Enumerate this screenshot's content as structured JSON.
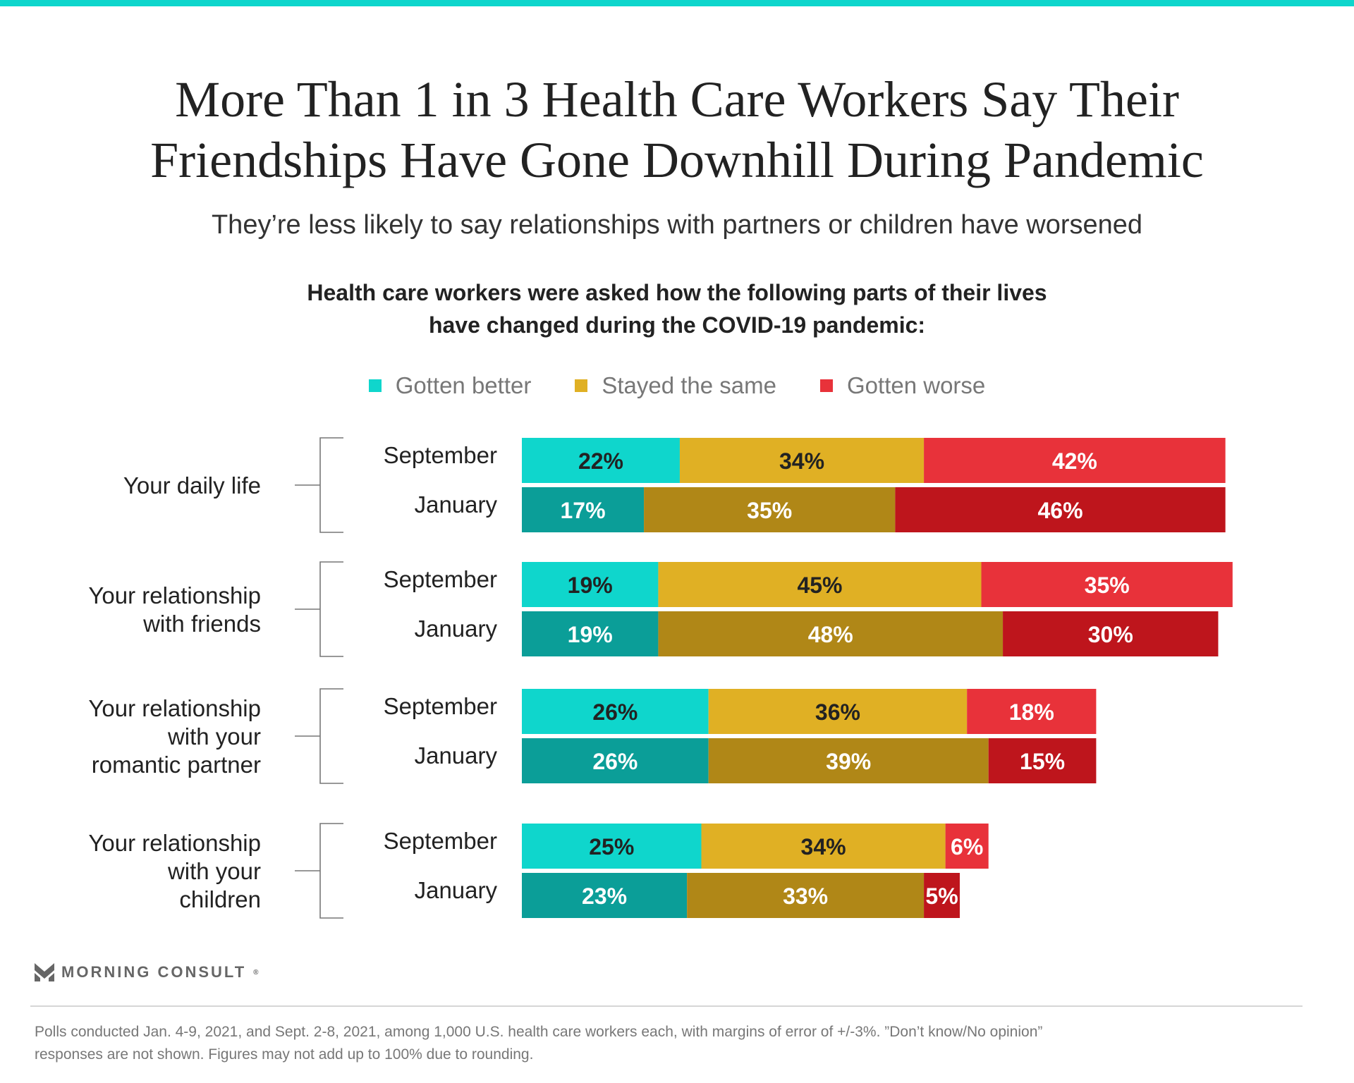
{
  "header": {
    "title_line1": "More Than 1 in 3 Health Care Workers Say Their",
    "title_line2": "Friendships Have Gone Downhill During Pandemic",
    "subtitle": "They’re less likely to say relationships with partners or children have worsened",
    "question_line1": "Health care workers were asked how the following parts of their lives",
    "question_line2": "have changed during the COVID-19 pandemic:"
  },
  "colors": {
    "accent_bar": "#0ed6cc",
    "better_sept": "#0fd6cc",
    "better_jan": "#0b9e98",
    "same_sept": "#e0b024",
    "same_jan": "#b08717",
    "worse_sept": "#e8323a",
    "worse_jan": "#be151c"
  },
  "chart_data": {
    "type": "bar",
    "orientation": "horizontal-stacked",
    "title": "More Than 1 in 3 Health Care Workers Say Their Friendships Have Gone Downhill During Pandemic",
    "legend": [
      "Gotten better",
      "Stayed the same",
      "Gotten worse"
    ],
    "legend_position": "top",
    "unit": "%",
    "groups": [
      {
        "category": "Your daily life",
        "label_lines": [
          "Your daily life"
        ],
        "rows": [
          {
            "period": "September",
            "values": [
              22,
              34,
              42
            ]
          },
          {
            "period": "January",
            "values": [
              17,
              35,
              46
            ]
          }
        ]
      },
      {
        "category": "Your relationship with friends",
        "label_lines": [
          "Your relationship",
          "with friends"
        ],
        "rows": [
          {
            "period": "September",
            "values": [
              19,
              45,
              35
            ]
          },
          {
            "period": "January",
            "values": [
              19,
              48,
              30
            ]
          }
        ]
      },
      {
        "category": "Your relationship with your romantic partner",
        "label_lines": [
          "Your relationship",
          "with your",
          "romantic partner"
        ],
        "rows": [
          {
            "period": "September",
            "values": [
              26,
              36,
              18
            ]
          },
          {
            "period": "January",
            "values": [
              26,
              39,
              15
            ]
          }
        ]
      },
      {
        "category": "Your relationship with your children",
        "label_lines": [
          "Your relationship",
          "with your",
          "children"
        ],
        "rows": [
          {
            "period": "September",
            "values": [
              25,
              34,
              6
            ]
          },
          {
            "period": "January",
            "values": [
              23,
              33,
              5
            ]
          }
        ]
      }
    ]
  },
  "footer": {
    "brand": "MORNING CONSULT",
    "registered_mark": "®",
    "note_line1": "Polls conducted Jan. 4-9, 2021, and Sept. 2-8, 2021, among 1,000 U.S. health care workers each, with margins of error of +/-3%. ”Don’t know/No opinion”",
    "note_line2": "responses are not shown. Figures may not add up to 100% due to rounding."
  }
}
